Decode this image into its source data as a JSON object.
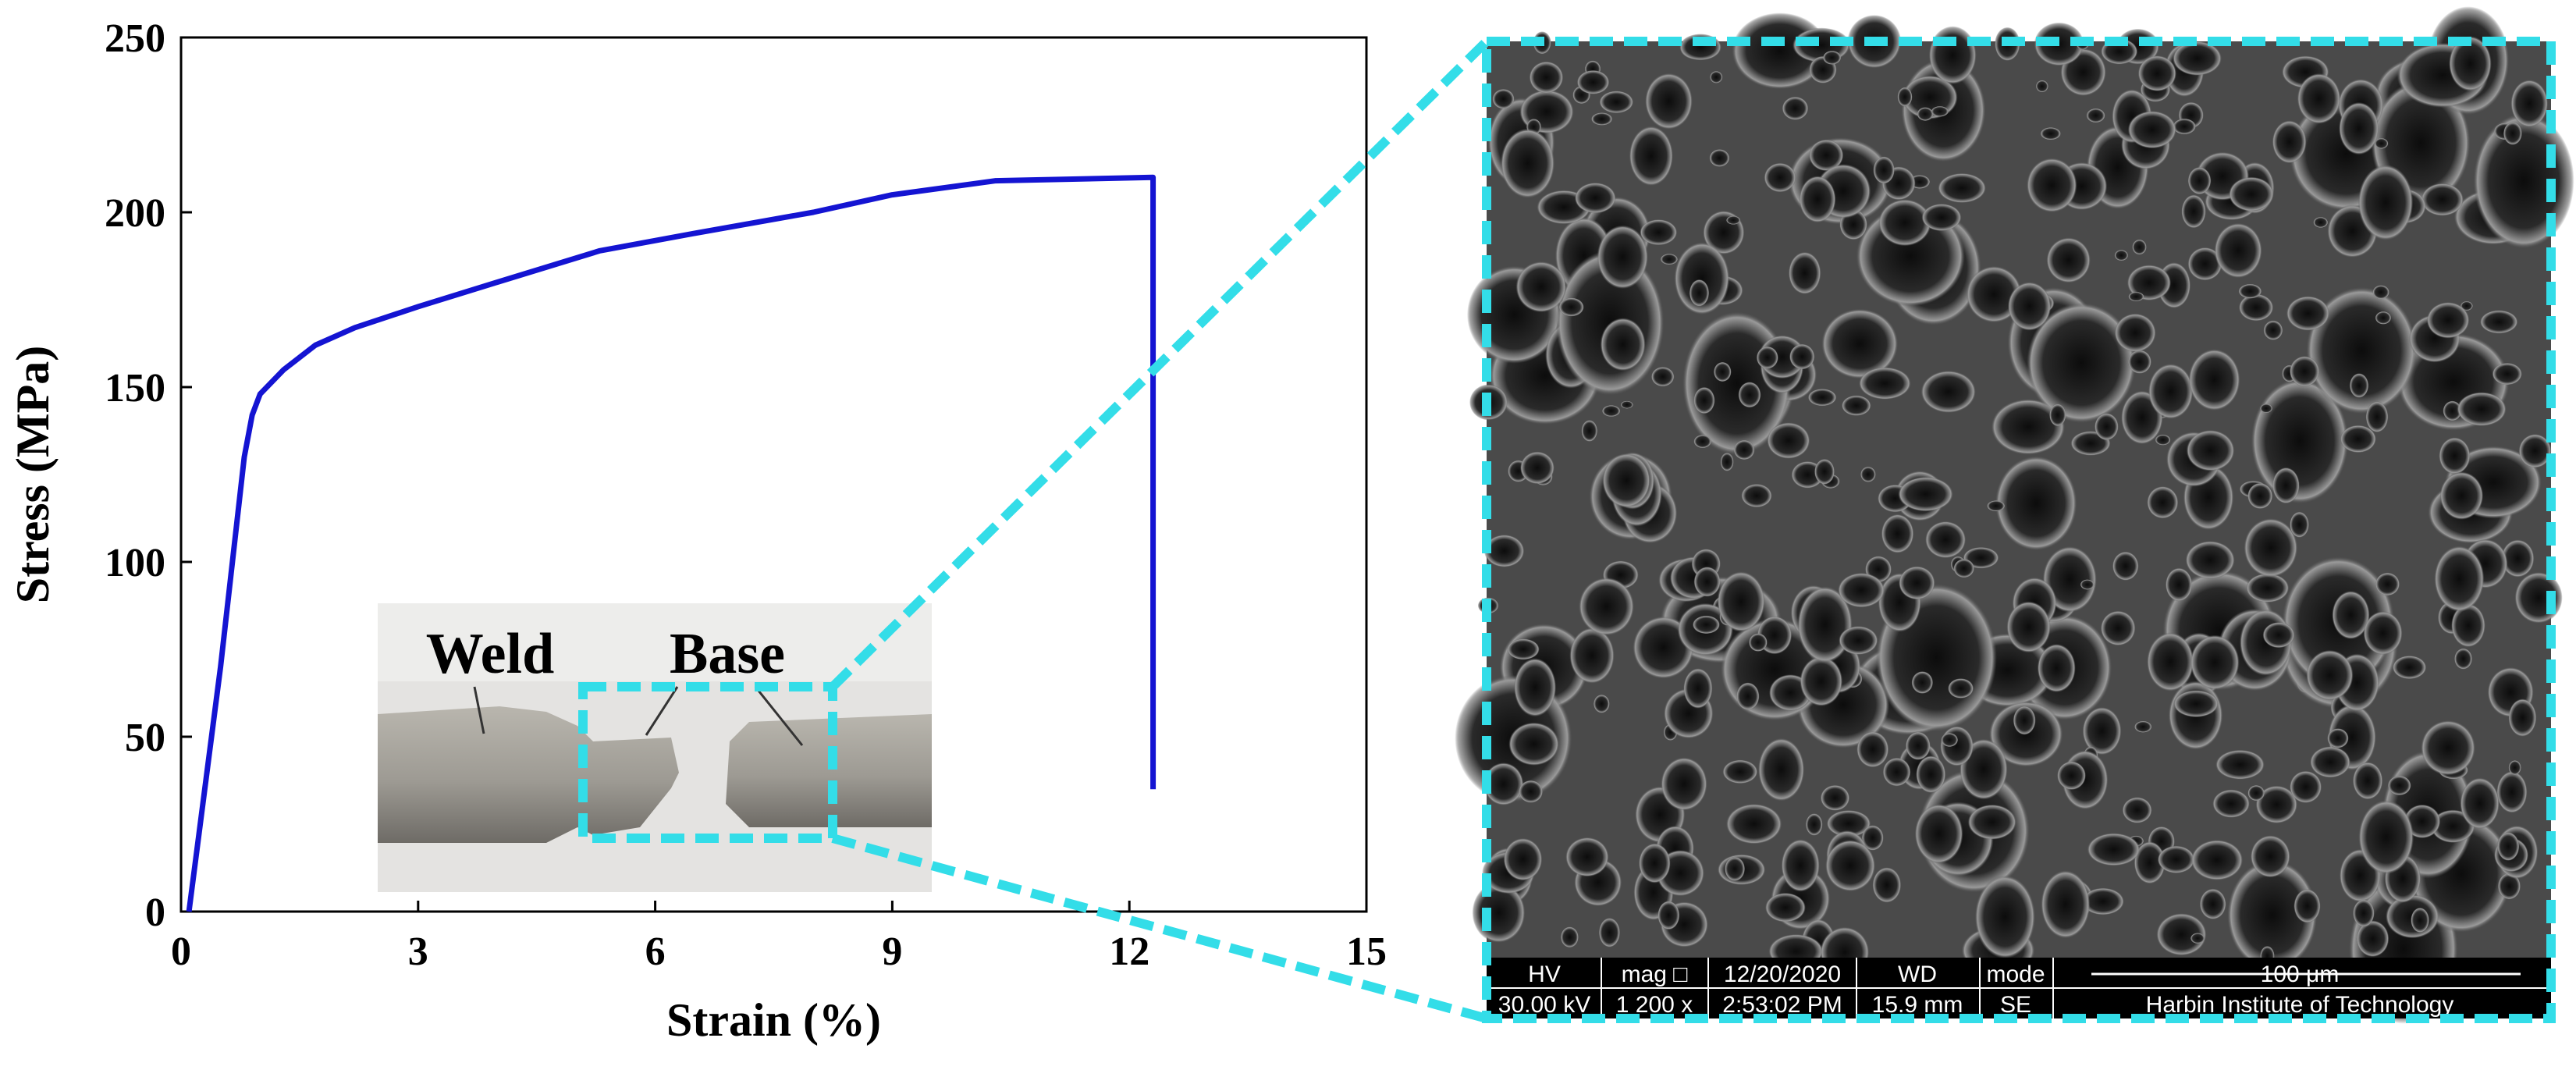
{
  "chart_data": {
    "type": "line",
    "xlabel": "Strain (%)",
    "ylabel": "Stress (MPa)",
    "x": [
      0.1,
      0.5,
      0.8,
      0.9,
      1.0,
      1.3,
      1.7,
      2.2,
      3.0,
      4.0,
      5.3,
      6.5,
      8.0,
      9.0,
      10.3,
      12.3,
      12.3,
      12.3
    ],
    "values": [
      0,
      70,
      130,
      142,
      148,
      155,
      162,
      167,
      173,
      180,
      189,
      194,
      200,
      205,
      209,
      210,
      155,
      35
    ],
    "color": "#1414d2",
    "xlim": [
      0,
      15
    ],
    "xticks": [
      0,
      3,
      6,
      9,
      12,
      15
    ],
    "ylim": [
      0,
      250
    ],
    "yticks": [
      0,
      50,
      100,
      150,
      200,
      250
    ]
  },
  "inset": {
    "labels": [
      "Weld",
      "Base"
    ]
  },
  "sem_info": {
    "header": [
      "HV",
      "mag □",
      "12/20/2020",
      "WD",
      "mode",
      "100 μm"
    ],
    "values": [
      "30.00 kV",
      "1 200 x",
      "2:53:02 PM",
      "15.9 mm",
      "SE",
      "Harbin Institute of Technology"
    ]
  }
}
